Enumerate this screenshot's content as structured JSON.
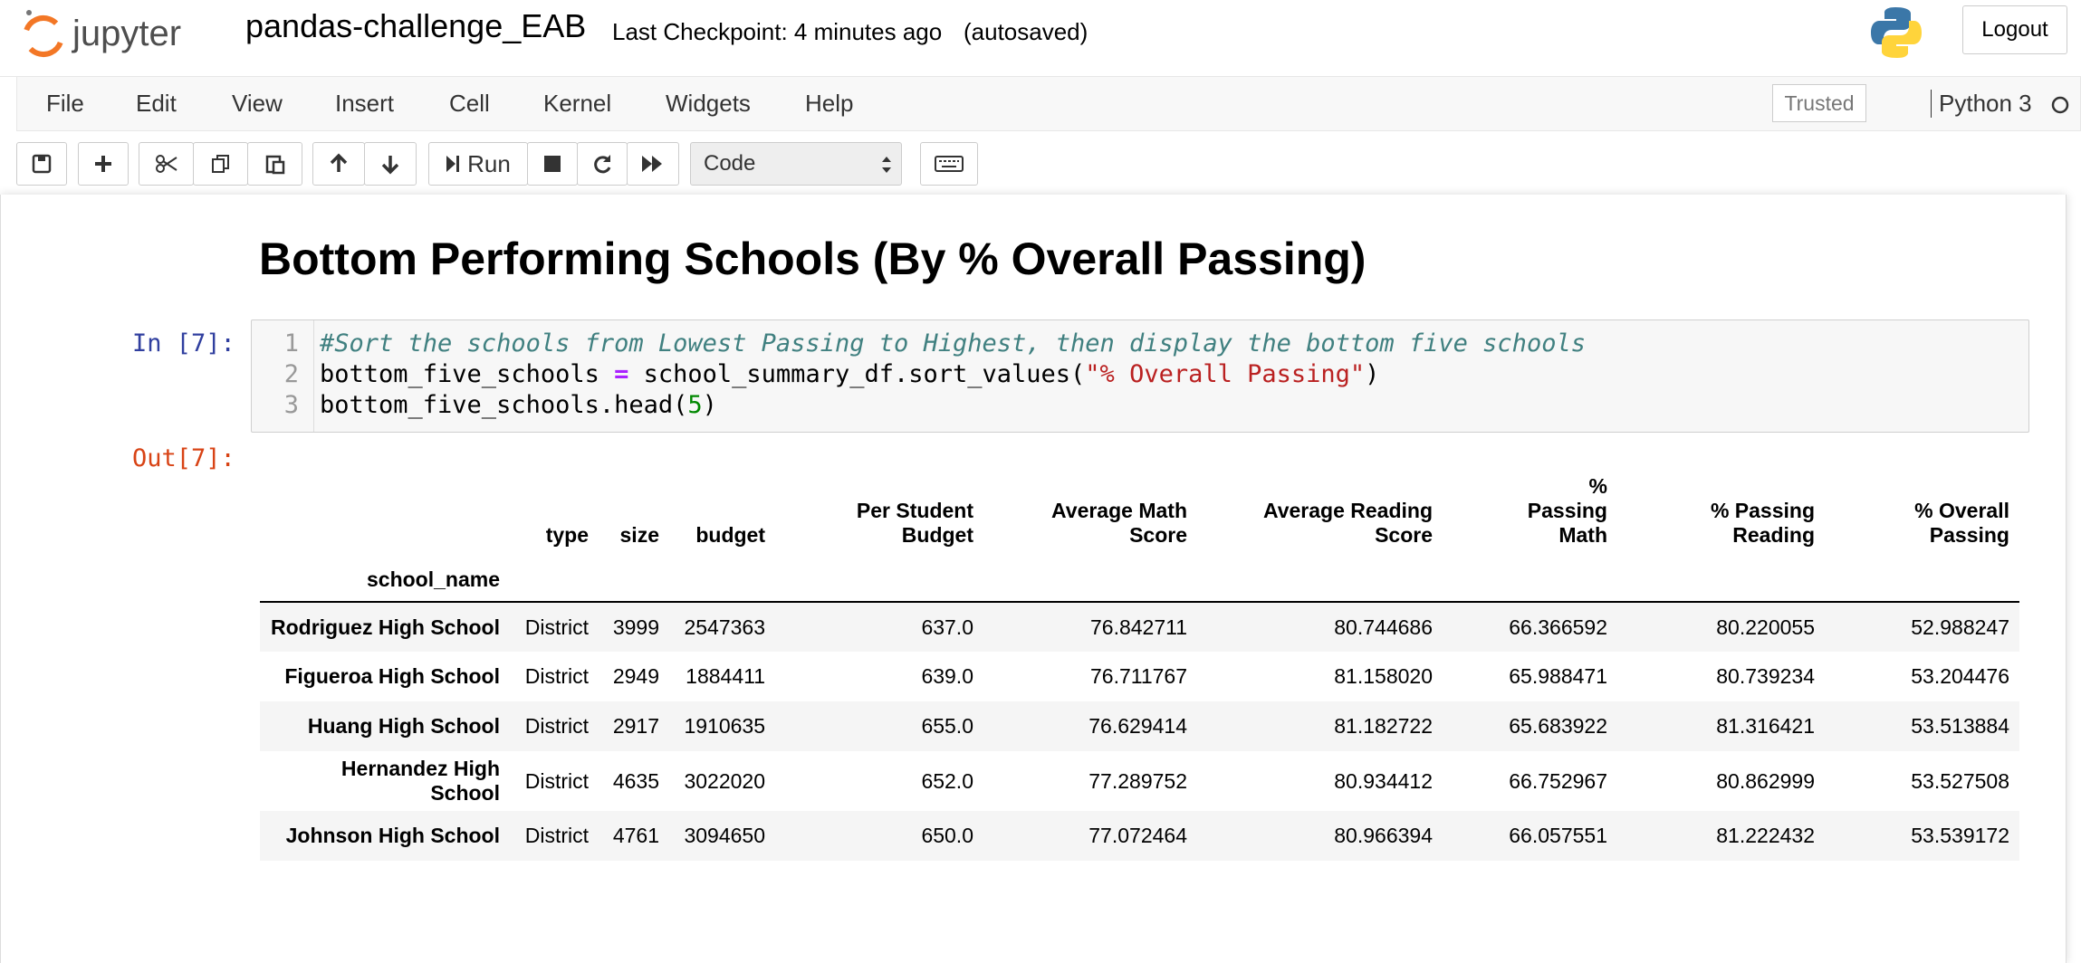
{
  "header": {
    "logo_text": "jupyter",
    "notebook_name": "pandas-challenge_EAB",
    "checkpoint": "Last Checkpoint: 4 minutes ago",
    "autosave": "(autosaved)",
    "logout": "Logout"
  },
  "menu": {
    "items": [
      "File",
      "Edit",
      "View",
      "Insert",
      "Cell",
      "Kernel",
      "Widgets",
      "Help"
    ],
    "trusted": "Trusted",
    "kernel": "Python 3"
  },
  "toolbar": {
    "run": "Run",
    "cell_type": "Code"
  },
  "notebook": {
    "heading": "Bottom Performing Schools (By % Overall Passing)",
    "input_prompt": "In [7]:",
    "output_prompt": "Out[7]:",
    "code": {
      "line_numbers": [
        "1",
        "2",
        "3"
      ],
      "lines": [
        [
          "#Sort the schools from Lowest Passing to Highest, then display the bottom five schools"
        ],
        [
          "bottom_five_schools ",
          "=",
          " school_summary_df.sort_values(",
          "\"% Overall Passing\"",
          ")"
        ],
        [
          "bottom_five_schools.head(",
          "5",
          ")"
        ]
      ]
    },
    "table": {
      "columns": [
        "type",
        "size",
        "budget",
        "Per Student Budget",
        "Average Math Score",
        "Average Reading Score",
        "% Passing Math",
        "% Passing Reading",
        "% Overall Passing"
      ],
      "index_name": "school_name",
      "index": [
        "Rodriguez High School",
        "Figueroa High School",
        "Huang High School",
        "Hernandez High School",
        "Johnson High School"
      ],
      "rows": [
        [
          "District",
          "3999",
          "2547363",
          "637.0",
          "76.842711",
          "80.744686",
          "66.366592",
          "80.220055",
          "52.988247"
        ],
        [
          "District",
          "2949",
          "1884411",
          "639.0",
          "76.711767",
          "81.158020",
          "65.988471",
          "80.739234",
          "53.204476"
        ],
        [
          "District",
          "2917",
          "1910635",
          "655.0",
          "76.629414",
          "81.182722",
          "65.683922",
          "81.316421",
          "53.513884"
        ],
        [
          "District",
          "4635",
          "3022020",
          "652.0",
          "77.289752",
          "80.934412",
          "66.752967",
          "80.862999",
          "53.527508"
        ],
        [
          "District",
          "4761",
          "3094650",
          "650.0",
          "77.072464",
          "80.966394",
          "66.057551",
          "81.222432",
          "53.539172"
        ]
      ]
    }
  }
}
